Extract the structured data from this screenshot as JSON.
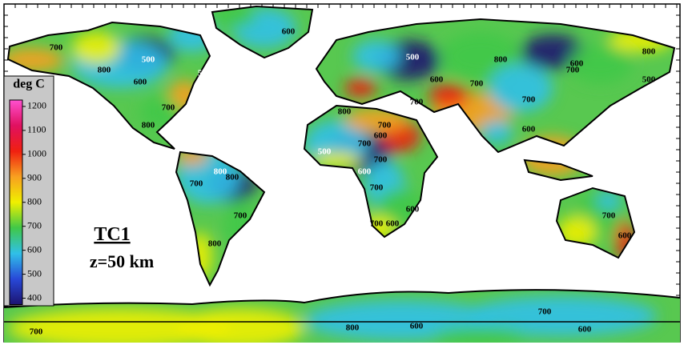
{
  "map": {
    "title": "TC1",
    "subtitle": "z=50 km",
    "colorbar": {
      "label": "deg C",
      "lim": [
        375,
        1250
      ],
      "ticks": [
        400,
        500,
        600,
        700,
        800,
        900,
        1000,
        1100,
        1200
      ],
      "colors": [
        "#1c1470",
        "#2848d8",
        "#30c0e8",
        "#40c848",
        "#f0f000",
        "#f8a020",
        "#f02010",
        "#e01060",
        "#ff50d0"
      ]
    },
    "contour_labels": [
      700,
      500,
      500,
      600,
      800,
      700,
      800,
      600,
      500,
      600,
      700,
      600,
      700,
      800,
      700,
      600,
      800,
      800,
      700,
      700,
      500,
      600,
      700,
      500,
      600,
      700,
      700,
      600,
      700,
      600,
      700,
      800,
      700,
      800,
      800,
      600,
      700,
      800,
      600,
      700,
      600,
      700
    ]
  }
}
